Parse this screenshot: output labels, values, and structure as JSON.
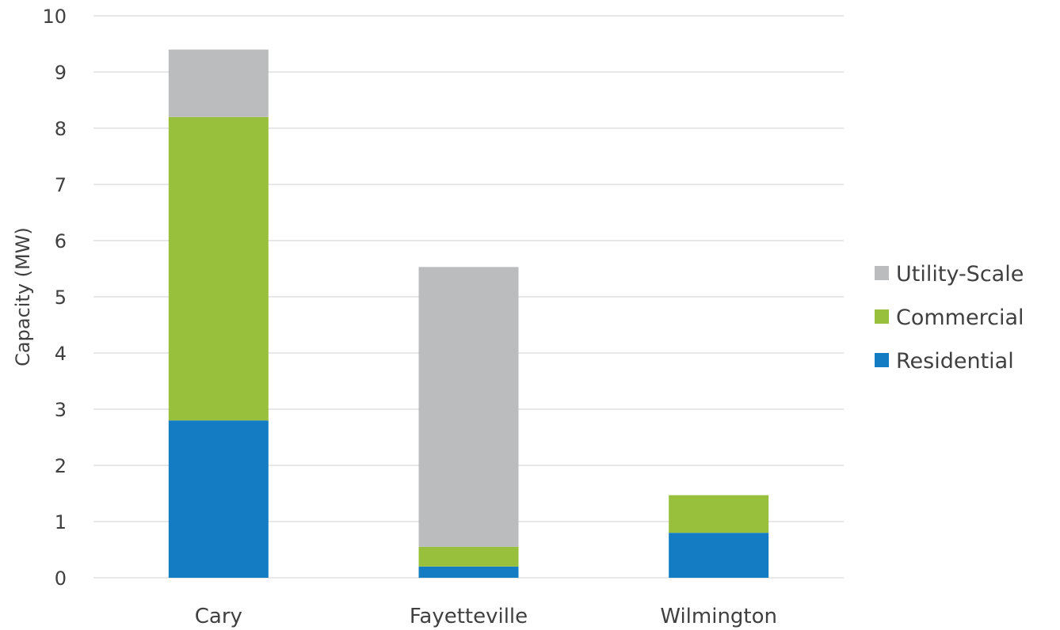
{
  "chart_data": {
    "type": "bar",
    "stacked": true,
    "title": "",
    "xlabel": "",
    "ylabel": "Capacity (MW)",
    "ylim": [
      0,
      10
    ],
    "yticks": [
      0,
      1,
      2,
      3,
      4,
      5,
      6,
      7,
      8,
      9,
      10
    ],
    "grid": true,
    "legend_position": "right",
    "categories": [
      "Cary",
      "Fayetteville",
      "Wilmington"
    ],
    "series": [
      {
        "name": "Residential",
        "color": "#137CC2",
        "values": [
          2.8,
          0.2,
          0.8
        ]
      },
      {
        "name": "Commercial",
        "color": "#98C03D",
        "values": [
          5.4,
          0.35,
          0.67
        ]
      },
      {
        "name": "Utility-Scale",
        "color": "#BBBCBE",
        "values": [
          1.2,
          4.98,
          0
        ]
      }
    ],
    "legend_order": [
      "Utility-Scale",
      "Commercial",
      "Residential"
    ]
  }
}
